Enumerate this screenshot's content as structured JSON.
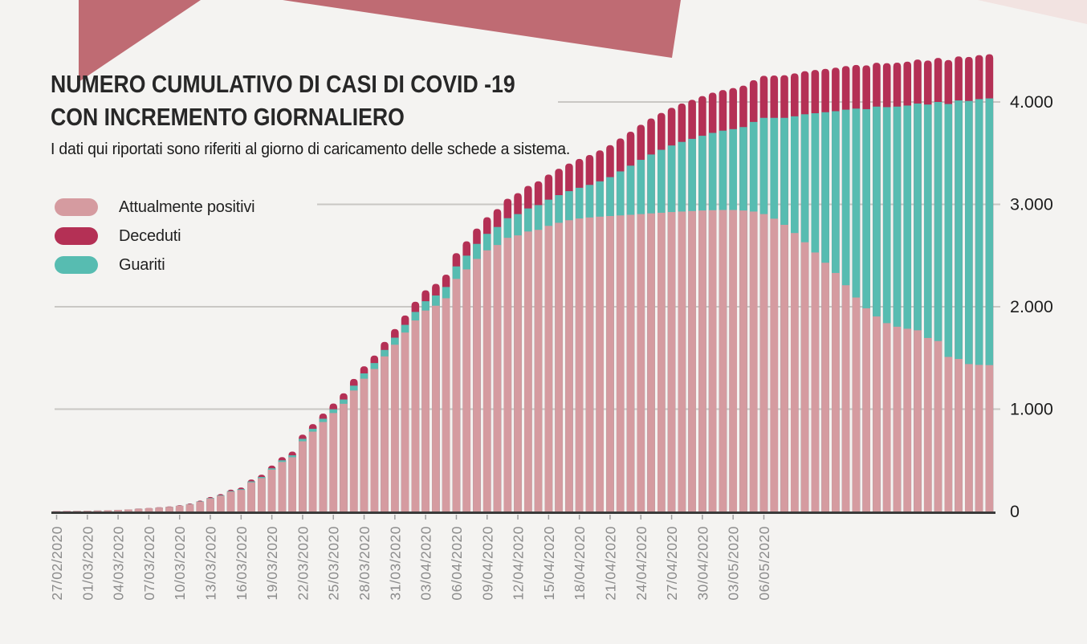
{
  "page": {
    "background": "#f4f3f1"
  },
  "decoration": {
    "band_color": "#bf6b73",
    "corner_color": "#f2e3e1"
  },
  "header": {
    "title_line1": "NUMERO CUMULATIVO DI CASI DI COVID -19",
    "title_line2": "CON INCREMENTO GIORNALIERO",
    "subtitle": "I dati qui riportati sono riferiti al giorno di caricamento delle schede a sistema."
  },
  "legend": {
    "items": [
      {
        "label": "Attualmente positivi",
        "color": "#d59ba0"
      },
      {
        "label": "Deceduti",
        "color": "#b43055"
      },
      {
        "label": "Guariti",
        "color": "#57bcb1"
      }
    ]
  },
  "chart_data": {
    "type": "bar",
    "stacked": true,
    "title": "NUMERO CUMULATIVO DI CASI DI COVID -19 CON INCREMENTO GIORNALIERO",
    "n_bars": 92,
    "first_bar_date": "27/02/2020",
    "label_every_n_bars": 3,
    "x_tick_labels": [
      "27/02/2020",
      "01/03/2020",
      "04/03/2020",
      "07/03/2020",
      "10/03/2020",
      "13/03/2020",
      "16/03/2020",
      "19/03/2020",
      "22/03/2020",
      "25/03/2020",
      "28/03/2020",
      "31/03/2020",
      "03/04/2020",
      "06/04/2020",
      "09/04/2020",
      "12/04/2020",
      "15/04/2020",
      "18/04/2020",
      "21/04/2020",
      "24/04/2020",
      "27/04/2020",
      "30/04/2020",
      "03/05/2020",
      "06/05/2020"
    ],
    "y_ticks": [
      {
        "label": "0",
        "value": 0
      },
      {
        "label": "1.000",
        "value": 1000
      },
      {
        "label": "2.000",
        "value": 2000
      },
      {
        "label": "3.000",
        "value": 3000
      },
      {
        "label": "4.000",
        "value": 4000
      }
    ],
    "ylim": [
      0,
      4500
    ],
    "grid": "horizontal",
    "legend_position": "upper-left",
    "stack_order_bottom_to_top": [
      "Attualmente positivi",
      "Guariti",
      "Deceduti"
    ],
    "series": [
      {
        "name": "Attualmente positivi",
        "color": "#d59ba0",
        "values": [
          2,
          3,
          5,
          7,
          9,
          12,
          16,
          20,
          26,
          31,
          38,
          45,
          55,
          70,
          96,
          128,
          154,
          194,
          211,
          285,
          326,
          409,
          484,
          530,
          686,
          780,
          874,
          962,
          1052,
          1182,
          1297,
          1392,
          1515,
          1629,
          1748,
          1866,
          1963,
          2010,
          2083,
          2272,
          2365,
          2467,
          2551,
          2603,
          2673,
          2697,
          2735,
          2751,
          2790,
          2820,
          2845,
          2862,
          2872,
          2880,
          2886,
          2892,
          2898,
          2905,
          2912,
          2918,
          2925,
          2930,
          2935,
          2940,
          2943,
          2945,
          2945,
          2940,
          2930,
          2905,
          2860,
          2800,
          2720,
          2630,
          2530,
          2430,
          2330,
          2210,
          2090,
          1985,
          1905,
          1840,
          1805,
          1785,
          1770,
          1695,
          1665,
          1510,
          1490,
          1440,
          1432,
          1430
        ]
      },
      {
        "name": "Guariti",
        "color": "#57bcb1",
        "values": [
          0,
          0,
          0,
          0,
          0,
          0,
          0,
          0,
          0,
          0,
          0,
          0,
          1,
          2,
          3,
          4,
          5,
          6,
          7,
          9,
          11,
          13,
          16,
          19,
          24,
          28,
          32,
          37,
          42,
          47,
          52,
          58,
          63,
          69,
          75,
          83,
          91,
          100,
          110,
          122,
          134,
          147,
          161,
          176,
          192,
          208,
          225,
          242,
          256,
          270,
          284,
          300,
          318,
          345,
          380,
          430,
          480,
          530,
          575,
          615,
          650,
          680,
          705,
          730,
          755,
          775,
          790,
          815,
          875,
          940,
          985,
          1045,
          1140,
          1250,
          1360,
          1470,
          1580,
          1715,
          1845,
          1945,
          2050,
          2110,
          2150,
          2180,
          2215,
          2280,
          2335,
          2470,
          2525,
          2570,
          2596,
          2605
        ]
      },
      {
        "name": "Deceduti",
        "color": "#b43055",
        "values": [
          0,
          0,
          0,
          0,
          0,
          0,
          0,
          0,
          2,
          2,
          3,
          4,
          5,
          6,
          8,
          10,
          12,
          14,
          16,
          19,
          23,
          27,
          31,
          36,
          41,
          46,
          51,
          56,
          61,
          66,
          70,
          74,
          79,
          84,
          92,
          100,
          107,
          114,
          121,
          130,
          140,
          150,
          162,
          175,
          190,
          205,
          220,
          232,
          245,
          258,
          270,
          282,
          292,
          302,
          312,
          322,
          332,
          342,
          352,
          360,
          368,
          375,
          382,
          388,
          393,
          397,
          401,
          405,
          408,
          411,
          414,
          417,
          419,
          421,
          423,
          424,
          425,
          426,
          427,
          428,
          428,
          429,
          429,
          429,
          430,
          430,
          430,
          430,
          430,
          430,
          430,
          432
        ]
      }
    ]
  }
}
